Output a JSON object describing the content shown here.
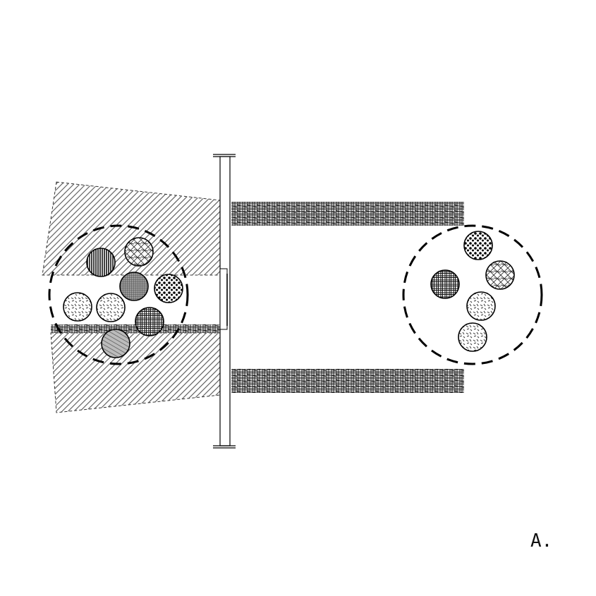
{
  "figure": {
    "panel_label": "A.",
    "left_particle_cluster": {
      "boundary": "dashed-circle",
      "particles": [
        {
          "pattern": "vertical-hatch-icon"
        },
        {
          "pattern": "crisscross-icon"
        },
        {
          "pattern": "fine-grid-icon"
        },
        {
          "pattern": "dots-icon"
        },
        {
          "pattern": "dashes-icon"
        },
        {
          "pattern": "dashes-icon"
        },
        {
          "pattern": "plaid-icon"
        },
        {
          "pattern": "diagonal-hatch-icon"
        }
      ]
    },
    "right_particle_cluster": {
      "boundary": "dashed-circle",
      "particles": [
        {
          "pattern": "dots-icon"
        },
        {
          "pattern": "plaid-icon"
        },
        {
          "pattern": "crisscross-icon"
        },
        {
          "pattern": "dashes-icon"
        },
        {
          "pattern": "dashes-icon"
        }
      ]
    }
  }
}
